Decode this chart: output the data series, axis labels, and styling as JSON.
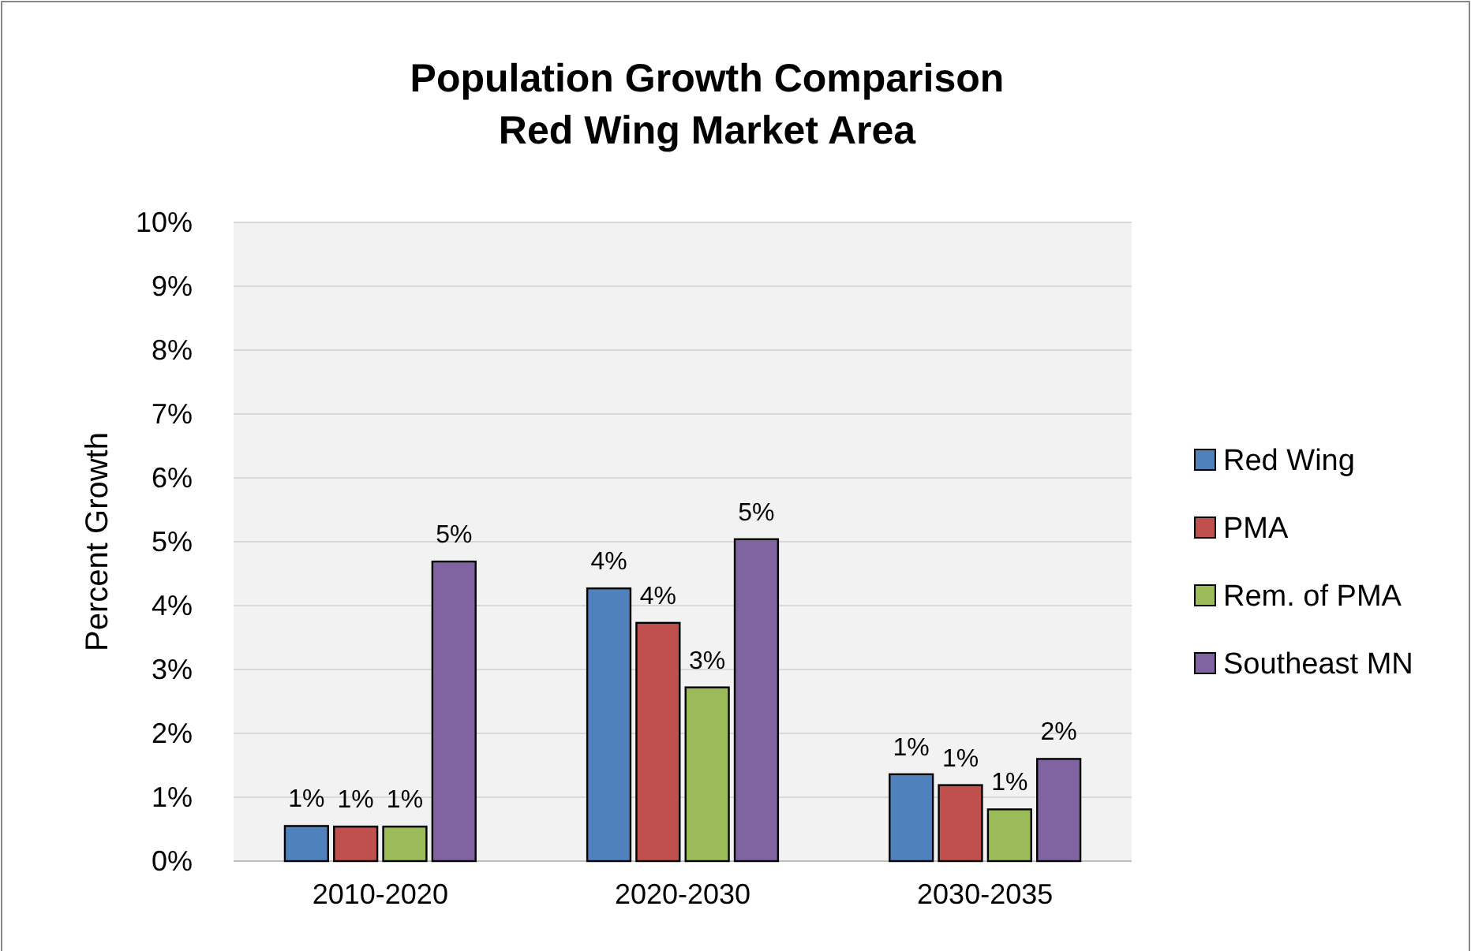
{
  "chart_data": {
    "type": "bar",
    "title": "Population Growth Comparison\nRed Wing Market Area",
    "ylabel": "Percent Growth",
    "categories": [
      "2010-2020",
      "2020-2030",
      "2030-2035"
    ],
    "series": [
      {
        "name": "Red Wing",
        "color": "#4f81bd",
        "values": [
          0.55,
          4.27,
          1.36
        ],
        "value_labels": [
          "1%",
          "4%",
          "1%"
        ]
      },
      {
        "name": "PMA",
        "color": "#c0504d",
        "values": [
          0.54,
          3.73,
          1.19
        ],
        "value_labels": [
          "1%",
          "4%",
          "1%"
        ]
      },
      {
        "name": "Rem. of PMA",
        "color": "#9bbb59",
        "values": [
          0.54,
          2.72,
          0.81
        ],
        "value_labels": [
          "1%",
          "3%",
          "1%"
        ]
      },
      {
        "name": "Southeast MN",
        "color": "#8064a2",
        "values": [
          4.69,
          5.04,
          1.6
        ],
        "value_labels": [
          "5%",
          "5%",
          "2%"
        ]
      }
    ],
    "ylim": [
      0,
      10
    ],
    "yticks": [
      {
        "value": 0,
        "label": "0%"
      },
      {
        "value": 1,
        "label": "1%"
      },
      {
        "value": 2,
        "label": "2%"
      },
      {
        "value": 3,
        "label": "3%"
      },
      {
        "value": 4,
        "label": "4%"
      },
      {
        "value": 5,
        "label": "5%"
      },
      {
        "value": 6,
        "label": "6%"
      },
      {
        "value": 7,
        "label": "7%"
      },
      {
        "value": 8,
        "label": "8%"
      },
      {
        "value": 9,
        "label": "9%"
      },
      {
        "value": 10,
        "label": "10%"
      }
    ],
    "grid": "y",
    "legend": "right"
  }
}
